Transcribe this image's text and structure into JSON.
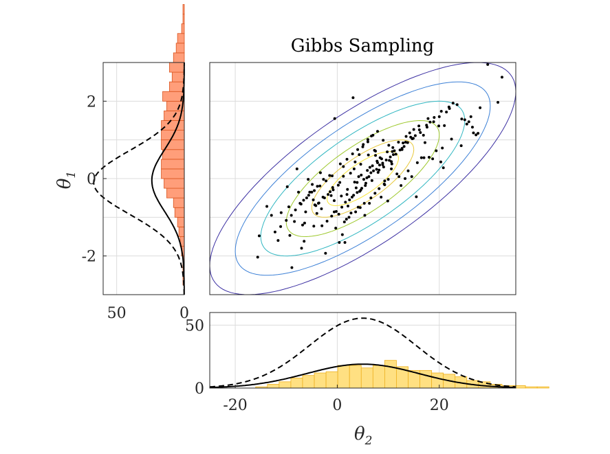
{
  "chart_data": [
    {
      "type": "scatter",
      "panel": "joint",
      "title": "Gibbs Sampling",
      "xlim": [
        -25,
        35
      ],
      "ylim": [
        -3,
        3
      ],
      "grid": true,
      "contours": {
        "center": [
          5,
          0
        ],
        "cov": [
          [
            100,
            7.5
          ],
          [
            7.5,
            1
          ]
        ],
        "levels": [
          {
            "r": 0.7,
            "color": "#f9e535"
          },
          {
            "r": 1.0,
            "color": "#e8c83a"
          },
          {
            "r": 1.5,
            "color": "#9dc82b"
          },
          {
            "r": 2.0,
            "color": "#2fb6c1"
          },
          {
            "r": 2.5,
            "color": "#3a7fd6"
          },
          {
            "r": 3.0,
            "color": "#3b2fa2"
          }
        ]
      },
      "points": {
        "x": [
          29.5,
          32.3,
          31.5,
          -15.3,
          -15.6,
          -12.9,
          -8.9,
          -4.6,
          -6.5,
          -7.6,
          -7.9,
          -0.5,
          1.0,
          0.4,
          -9.5,
          -8.4,
          -11.0,
          -5.7,
          -3.3,
          -1.5,
          -4.7,
          -6.8,
          -9.3,
          -4.9,
          -2.7,
          -1.2,
          0.8,
          -0.3,
          2.4,
          3.9,
          1.2,
          5.8,
          6.6,
          8.3,
          7.5,
          4.6,
          3.3,
          6.1,
          9.3,
          8.9,
          10.6,
          12.1,
          13.9,
          12.7,
          15.7,
          18.0,
          20.3,
          19.9,
          16.9,
          14.7,
          13.4,
          17.5,
          22.0,
          23.5,
          21.0,
          24.4,
          25.0,
          26.2,
          27.6,
          26.7,
          26.5,
          25.4,
          24.3,
          20.6,
          19.4,
          18.7,
          17.2,
          16.5,
          15.3,
          10.6,
          9.3,
          7.9,
          7.3,
          6.7,
          5.0,
          4.3,
          3.5,
          2.6,
          1.2,
          0.5,
          -0.9,
          -1.4,
          -2.8,
          -4.4,
          -6.2,
          -5.4,
          -3.1,
          -0.6,
          0.3,
          2.1,
          3.2,
          4.4,
          5.5,
          6.8,
          8.0,
          9.1,
          10.2,
          11.5,
          12.7,
          13.8,
          14.9,
          16.3,
          17.6,
          18.9,
          20.0,
          21.4,
          8.6,
          6.3,
          4.1,
          2.7,
          1.8,
          3.7,
          5.2,
          7.1,
          9.6,
          11.0,
          12.3,
          13.1,
          10.4,
          8.9,
          7.7,
          6.2,
          5.6,
          4.8,
          3.9,
          2.9,
          1.6,
          0.9,
          -0.2,
          -1.1,
          -2.0,
          -3.0,
          -3.9,
          -5.0,
          -6.0,
          -7.1,
          -8.2,
          -9.0,
          -10.0,
          -11.1,
          -12.2,
          4.2,
          5.9,
          6.9,
          7.8,
          8.4,
          9.8,
          10.9,
          12.0,
          13.5,
          14.2,
          15.0,
          16.0,
          11.7,
          10.0,
          9.2,
          8.2,
          7.4,
          6.6,
          5.3,
          4.5,
          3.6,
          2.3,
          1.4,
          0.2,
          -0.8,
          -1.8,
          -2.5,
          -3.6,
          -4.2,
          0.6,
          1.9,
          3.0,
          4.0,
          5.1,
          6.0,
          7.0,
          7.9,
          9.0,
          10.1,
          11.2,
          -1.0,
          -2.2,
          -3.4,
          -4.5,
          -5.6,
          -6.6,
          -7.3,
          2.0,
          3.4,
          4.7,
          6.4,
          8.7,
          10.8,
          12.9,
          14.4,
          16.1,
          18.2,
          19.0,
          20.4,
          21.9,
          22.7,
          -9.8,
          -13.8,
          -11.6,
          -7.0,
          -2.3,
          1.5,
          5.4,
          9.9,
          13.3,
          17.0,
          22.4,
          25.8,
          27.2,
          28.0,
          3.1,
          6.0,
          -0.6,
          12.5,
          14.6,
          8.2,
          -3.7,
          1.9,
          4.6,
          7.5,
          10.7,
          -6.4,
          -4.0,
          17.8,
          15.5,
          20.8
        ],
        "y": [
          2.95,
          2.62,
          1.97,
          -1.48,
          -2.03,
          -0.95,
          -2.3,
          -1.23,
          -1.62,
          -0.35,
          0.25,
          1.55,
          -1.45,
          -1.65,
          -0.73,
          -1.11,
          -0.88,
          -0.02,
          0.15,
          0.08,
          -0.55,
          -1.2,
          -1.47,
          -0.15,
          -0.02,
          -0.44,
          -0.45,
          -1.28,
          -0.55,
          -0.1,
          0.31,
          0.02,
          0.15,
          0.35,
          0.71,
          0.37,
          0.25,
          0.61,
          -0.16,
          0.4,
          0.25,
          0.05,
          0.2,
          0.75,
          0.41,
          0.55,
          0.43,
          1.36,
          1.12,
          1.03,
          0.94,
          1.38,
          1.81,
          1.91,
          1.37,
          1.54,
          1.52,
          1.6,
          1.17,
          1.18,
          1.33,
          1.41,
          0.85,
          0.79,
          0.72,
          0.51,
          0.93,
          0.54,
          1.11,
          0.44,
          -0.06,
          0.41,
          0.73,
          1.1,
          0.82,
          0.62,
          0.43,
          0.14,
          0.06,
          -0.1,
          -0.23,
          -0.34,
          -0.48,
          -0.68,
          -0.86,
          -0.35,
          -0.78,
          -0.57,
          -0.92,
          -0.71,
          -0.43,
          -0.33,
          -0.18,
          -0.05,
          0.16,
          0.3,
          0.47,
          0.63,
          0.78,
          0.93,
          1.04,
          1.19,
          1.33,
          1.47,
          1.6,
          1.72,
          -0.48,
          -0.64,
          -0.74,
          -0.89,
          -1.05,
          -0.24,
          -0.02,
          0.2,
          0.48,
          0.62,
          0.74,
          0.83,
          0.56,
          0.36,
          0.24,
          0.05,
          -0.12,
          -0.25,
          -0.36,
          -0.48,
          -0.61,
          -0.74,
          -0.85,
          -0.97,
          -1.1,
          -1.22,
          -0.2,
          -0.35,
          -0.5,
          -0.66,
          -0.81,
          -0.95,
          -1.08,
          -1.24,
          -1.38,
          0.05,
          0.21,
          0.33,
          0.45,
          0.54,
          0.69,
          0.8,
          0.94,
          1.09,
          1.18,
          1.27,
          1.36,
          0.12,
          -0.02,
          -0.14,
          -0.26,
          -0.38,
          -0.5,
          -0.64,
          -0.75,
          -0.86,
          -1.0,
          -1.12,
          -0.17,
          -0.29,
          -0.41,
          -0.5,
          -0.63,
          -0.7,
          0.38,
          0.5,
          0.64,
          0.75,
          0.88,
          1.01,
          1.12,
          1.22,
          0.99,
          0.86,
          0.72,
          0.07,
          -0.06,
          -0.19,
          -0.31,
          -0.43,
          -0.56,
          -0.64,
          -0.28,
          -0.09,
          0.09,
          0.29,
          0.51,
          0.7,
          0.92,
          1.07,
          1.26,
          1.46,
          1.58,
          1.74,
          1.85,
          1.95,
          -0.21,
          -0.72,
          -1.6,
          -1.8,
          -1.93,
          -1.65,
          -0.95,
          -0.58,
          0.0,
          0.54,
          1.02,
          1.47,
          1.13,
          1.83,
          2.09,
          0.95,
          -0.86,
          -0.18,
          0.05,
          0.22,
          -0.64,
          -0.41,
          -0.3,
          0.6,
          0.38,
          -1.15,
          -0.9,
          1.55,
          -0.47,
          0.28
        ]
      }
    },
    {
      "type": "bar",
      "panel": "left-marginal",
      "orientation": "horizontal",
      "ylabel": "θ",
      "ylabel_sub": "1",
      "xlim": [
        60,
        0
      ],
      "xticks": [
        "50",
        "0"
      ],
      "yticks": [
        "2",
        "0",
        "-2"
      ],
      "bins": {
        "start": -3.0,
        "width": 0.25,
        "counts": [
          0,
          1,
          1,
          1,
          2,
          3,
          4,
          5,
          7,
          8,
          13,
          15,
          17,
          17,
          16,
          17,
          17,
          17,
          15,
          13,
          16,
          11,
          9,
          11,
          8,
          6,
          5,
          2,
          1,
          1,
          0,
          0,
          0,
          0,
          0
        ]
      },
      "fill_color": "#ff9e7a",
      "edge_color": "#d9541e",
      "curves": [
        {
          "style": "solid",
          "peak": 24,
          "mu": -0.05,
          "sigma": 0.8
        },
        {
          "style": "dashed",
          "peak": 67,
          "mu": -0.1,
          "sigma": 0.82
        }
      ]
    },
    {
      "type": "bar",
      "panel": "bottom-marginal",
      "xlabel": "θ",
      "xlabel_sub": "2",
      "xlim": [
        -25,
        35
      ],
      "ylim": [
        0,
        60
      ],
      "xticks": [
        "-20",
        "0",
        "20"
      ],
      "yticks": [
        "50",
        "0"
      ],
      "bins": {
        "start": -16.0,
        "width": 2.3,
        "counts": [
          1,
          3,
          5,
          8,
          10,
          12,
          13,
          18,
          18,
          16,
          18,
          22,
          17,
          14,
          14,
          12,
          11,
          9,
          6,
          5,
          3,
          2,
          2,
          1,
          1
        ]
      },
      "fill_color": "#ffe082",
      "edge_color": "#edb120",
      "curves": [
        {
          "style": "solid",
          "peak": 19,
          "mu": 5,
          "sigma": 11
        },
        {
          "style": "dashed",
          "peak": 55.5,
          "mu": 5,
          "sigma": 10.5
        }
      ]
    }
  ]
}
